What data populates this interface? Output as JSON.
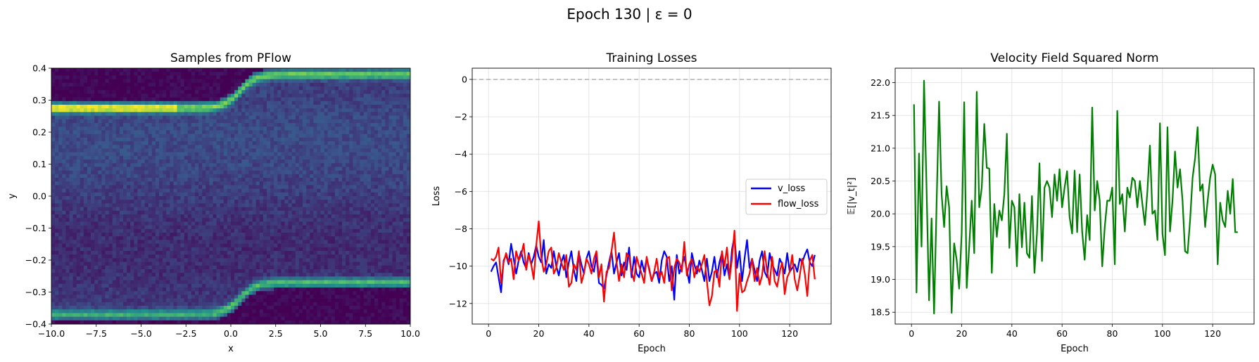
{
  "figure": {
    "suptitle": "Epoch 130 | ε = 0"
  },
  "chart_data": [
    {
      "type": "heatmap",
      "title": "Samples from PFlow",
      "xlabel": "x",
      "ylabel": "y",
      "xlim": [
        -10.0,
        10.0
      ],
      "ylim": [
        -0.4,
        0.4
      ],
      "xticks": [
        "−10.0",
        "−7.5",
        "−5.0",
        "−2.5",
        "0.0",
        "2.5",
        "5.0",
        "7.5",
        "10.0"
      ],
      "yticks": [
        "−0.4",
        "−0.3",
        "−0.2",
        "−0.1",
        "0.0",
        "0.1",
        "0.2",
        "0.3",
        "0.4"
      ],
      "colormap": "viridis",
      "density_ridges": [
        {
          "y_left": 0.275,
          "y_right": 0.38,
          "transition_x": 0.5
        },
        {
          "y_left": -0.37,
          "y_right": -0.27,
          "transition_x": 0.5
        }
      ]
    },
    {
      "type": "line",
      "title": "Training Losses",
      "xlabel": "Epoch",
      "ylabel": "Loss",
      "xlim": [
        -6.5,
        136.5
      ],
      "ylim": [
        -13.1,
        0.6
      ],
      "xticks": [
        "0",
        "20",
        "40",
        "60",
        "80",
        "100",
        "120"
      ],
      "yticks": [
        "−12",
        "−10",
        "−8",
        "−6",
        "−4",
        "−2",
        "0"
      ],
      "grid": true,
      "hline": {
        "y": 0,
        "style": "dashed",
        "color": "#b0b0b0"
      },
      "legend": "center-right",
      "x": [
        1,
        2,
        3,
        4,
        5,
        6,
        7,
        8,
        9,
        10,
        11,
        12,
        13,
        14,
        15,
        16,
        17,
        18,
        19,
        20,
        21,
        22,
        23,
        24,
        25,
        26,
        27,
        28,
        29,
        30,
        31,
        32,
        33,
        34,
        35,
        36,
        37,
        38,
        39,
        40,
        41,
        42,
        43,
        44,
        45,
        46,
        47,
        48,
        49,
        50,
        51,
        52,
        53,
        54,
        55,
        56,
        57,
        58,
        59,
        60,
        61,
        62,
        63,
        64,
        65,
        66,
        67,
        68,
        69,
        70,
        71,
        72,
        73,
        74,
        75,
        76,
        77,
        78,
        79,
        80,
        81,
        82,
        83,
        84,
        85,
        86,
        87,
        88,
        89,
        90,
        91,
        92,
        93,
        94,
        95,
        96,
        97,
        98,
        99,
        100,
        101,
        102,
        103,
        104,
        105,
        106,
        107,
        108,
        109,
        110,
        111,
        112,
        113,
        114,
        115,
        116,
        117,
        118,
        119,
        120,
        121,
        122,
        123,
        124,
        125,
        126,
        127,
        128,
        129,
        130
      ],
      "series": [
        {
          "name": "v_loss",
          "color": "#0000ff",
          "values": [
            -10.3,
            -10.0,
            -9.8,
            -10.6,
            -11.4,
            -9.7,
            -9.4,
            -9.9,
            -8.8,
            -9.6,
            -10.4,
            -9.7,
            -9.2,
            -9.8,
            -10.1,
            -9.3,
            -9.9,
            -9.5,
            -8.9,
            -9.5,
            -9.8,
            -8.6,
            -10.4,
            -9.9,
            -10.1,
            -9.2,
            -10.0,
            -10.5,
            -9.8,
            -9.4,
            -10.6,
            -9.8,
            -9.2,
            -10.2,
            -10.8,
            -9.3,
            -9.9,
            -10.4,
            -9.6,
            -9.2,
            -10.0,
            -10.3,
            -9.4,
            -10.9,
            -11.0,
            -11.2,
            -10.5,
            -9.8,
            -9.2,
            -10.4,
            -9.8,
            -9.3,
            -10.5,
            -9.8,
            -10.2,
            -9.0,
            -10.6,
            -9.5,
            -10.4,
            -10.6,
            -9.7,
            -10.3,
            -9.6,
            -10.1,
            -10.8,
            -10.4,
            -10.3,
            -10.9,
            -9.7,
            -9.2,
            -9.5,
            -10.8,
            -10.0,
            -11.8,
            -9.4,
            -10.4,
            -10.0,
            -9.5,
            -10.2,
            -10.9,
            -9.3,
            -9.9,
            -10.4,
            -9.7,
            -10.2,
            -10.8,
            -9.6,
            -10.8,
            -10.3,
            -9.5,
            -10.6,
            -9.8,
            -9.3,
            -10.5,
            -9.9,
            -10.7,
            -9.1,
            -8.4,
            -10.1,
            -9.2,
            -10.8,
            -9.6,
            -8.6,
            -10.1,
            -9.6,
            -10.2,
            -10.8,
            -9.7,
            -9.2,
            -10.3,
            -10.6,
            -9.3,
            -9.9,
            -10.2,
            -10.5,
            -9.6,
            -9.9,
            -10.4,
            -9.3,
            -10.3,
            -10.1,
            -9.9,
            -10.3,
            -9.6,
            -9.8,
            -9.4,
            -9.1,
            -9.8,
            -10.0,
            -9.4
          ]
        },
        {
          "name": "flow_loss",
          "color": "#ff0000",
          "values": [
            -9.6,
            -9.7,
            -9.5,
            -9.0,
            -10.9,
            -9.8,
            -9.3,
            -9.8,
            -9.6,
            -10.7,
            -9.2,
            -9.7,
            -9.4,
            -8.8,
            -10.2,
            -9.4,
            -9.9,
            -10.7,
            -8.9,
            -7.6,
            -9.5,
            -10.3,
            -9.9,
            -9.2,
            -9.0,
            -10.4,
            -10.1,
            -9.3,
            -9.8,
            -10.2,
            -9.4,
            -11.1,
            -10.9,
            -9.9,
            -10.2,
            -9.2,
            -10.9,
            -10.4,
            -9.6,
            -9.9,
            -10.4,
            -9.6,
            -9.2,
            -10.6,
            -9.9,
            -11.9,
            -10.3,
            -10.1,
            -9.2,
            -8.2,
            -9.8,
            -10.8,
            -9.9,
            -10.6,
            -9.3,
            -9.5,
            -10.3,
            -10.8,
            -9.5,
            -10.0,
            -10.4,
            -10.9,
            -9.5,
            -10.2,
            -10.8,
            -10.3,
            -9.6,
            -10.6,
            -10.3,
            -10.9,
            -9.6,
            -9.5,
            -11.3,
            -10.1,
            -9.6,
            -9.8,
            -10.3,
            -8.7,
            -10.5,
            -9.9,
            -9.6,
            -10.6,
            -10.0,
            -10.3,
            -9.9,
            -9.4,
            -10.8,
            -12.1,
            -11.6,
            -10.3,
            -10.2,
            -11.1,
            -9.2,
            -10.0,
            -9.0,
            -10.7,
            -9.6,
            -8.1,
            -12.4,
            -10.4,
            -11.4,
            -11.3,
            -10.8,
            -10.4,
            -9.6,
            -10.8,
            -10.1,
            -11.0,
            -10.5,
            -9.2,
            -10.3,
            -11.0,
            -9.5,
            -10.8,
            -11.1,
            -10.3,
            -9.8,
            -11.5,
            -10.6,
            -10.3,
            -9.4,
            -10.7,
            -11.3,
            -10.5,
            -9.6,
            -10.4,
            -11.6,
            -9.7,
            -9.4,
            -10.7
          ]
        }
      ]
    },
    {
      "type": "line",
      "title": "Velocity Field Squared Norm",
      "xlabel": "Epoch",
      "ylabel": "𝔼[|v_t|²]",
      "xlim": [
        -6.5,
        136.5
      ],
      "ylim": [
        18.32,
        22.22
      ],
      "xticks": [
        "0",
        "20",
        "40",
        "60",
        "80",
        "100",
        "120"
      ],
      "yticks": [
        "18.5",
        "19.0",
        "19.5",
        "20.0",
        "20.5",
        "21.0",
        "21.5",
        "22.0"
      ],
      "grid": true,
      "x": [
        1,
        2,
        3,
        4,
        5,
        6,
        7,
        8,
        9,
        10,
        11,
        12,
        13,
        14,
        15,
        16,
        17,
        18,
        19,
        20,
        21,
        22,
        23,
        24,
        25,
        26,
        27,
        28,
        29,
        30,
        31,
        32,
        33,
        34,
        35,
        36,
        37,
        38,
        39,
        40,
        41,
        42,
        43,
        44,
        45,
        46,
        47,
        48,
        49,
        50,
        51,
        52,
        53,
        54,
        55,
        56,
        57,
        58,
        59,
        60,
        61,
        62,
        63,
        64,
        65,
        66,
        67,
        68,
        69,
        70,
        71,
        72,
        73,
        74,
        75,
        76,
        77,
        78,
        79,
        80,
        81,
        82,
        83,
        84,
        85,
        86,
        87,
        88,
        89,
        90,
        91,
        92,
        93,
        94,
        95,
        96,
        97,
        98,
        99,
        100,
        101,
        102,
        103,
        104,
        105,
        106,
        107,
        108,
        109,
        110,
        111,
        112,
        113,
        114,
        115,
        116,
        117,
        118,
        119,
        120,
        121,
        122,
        123,
        124,
        125,
        126,
        127,
        128,
        129,
        130
      ],
      "series": [
        {
          "color": "#008000",
          "values": [
            21.67,
            18.8,
            20.92,
            19.5,
            22.03,
            20.4,
            18.68,
            19.93,
            18.48,
            20.15,
            21.71,
            20.3,
            19.8,
            20.42,
            20.1,
            18.49,
            19.55,
            19.3,
            18.86,
            19.7,
            21.7,
            18.87,
            19.5,
            20.2,
            19.4,
            21.86,
            20.1,
            20.4,
            21.37,
            20.7,
            20.69,
            19.1,
            20.15,
            19.65,
            20.05,
            19.9,
            20.3,
            21.22,
            19.48,
            20.2,
            20.1,
            19.2,
            20.3,
            19.49,
            20.17,
            19.4,
            19.33,
            20.27,
            19.1,
            19.7,
            20.77,
            19.28,
            20.4,
            20.5,
            20.4,
            19.95,
            20.6,
            20.2,
            20.68,
            20.1,
            20.4,
            20.65,
            19.95,
            19.7,
            20.66,
            19.72,
            20.6,
            19.73,
            19.3,
            19.98,
            19.6,
            21.62,
            20.05,
            20.5,
            20.2,
            19.2,
            19.8,
            20.2,
            20.2,
            20.4,
            19.23,
            21.57,
            20.15,
            20.3,
            19.73,
            20.4,
            20.25,
            20.55,
            20.5,
            20.1,
            20.5,
            20.15,
            19.83,
            20.35,
            21.04,
            20.0,
            20.05,
            19.6,
            21.38,
            19.7,
            19.37,
            21.32,
            19.73,
            20.2,
            20.95,
            20.4,
            20.68,
            20.2,
            19.43,
            19.4,
            19.9,
            20.55,
            20.85,
            21.32,
            20.35,
            20.45,
            19.8,
            20.2,
            20.55,
            20.75,
            20.6,
            19.23,
            20.17,
            19.9,
            19.8,
            20.35,
            20.0,
            20.53,
            19.72,
            19.72
          ]
        }
      ]
    }
  ]
}
